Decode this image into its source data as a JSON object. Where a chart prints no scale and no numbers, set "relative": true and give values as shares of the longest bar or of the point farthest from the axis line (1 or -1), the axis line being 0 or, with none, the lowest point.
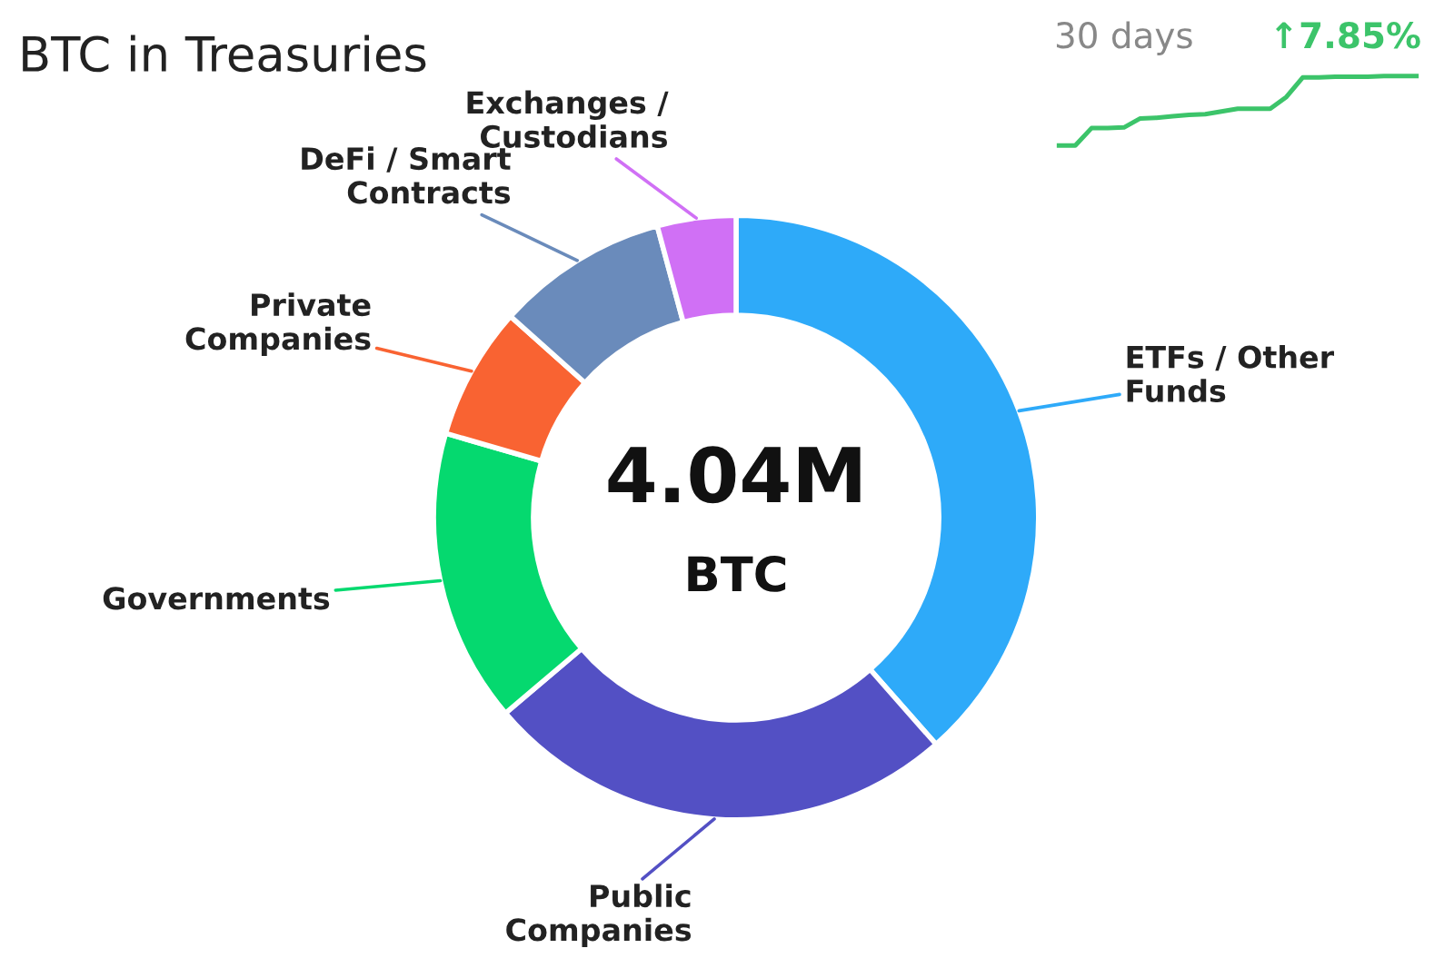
{
  "chart_data": [
    {
      "type": "donut",
      "title": "BTC in Treasuries",
      "categories": [
        "ETFs / Other\nFunds",
        "Public\nCompanies",
        "Governments",
        "Private\nCompanies",
        "DeFi / Smart\nContracts",
        "Exchanges /\nCustodians"
      ],
      "values": [
        38.5,
        25.3,
        15.7,
        7.1,
        9.2,
        4.2
      ],
      "colors": [
        "#2eaaf9",
        "#5350c4",
        "#05d96f",
        "#f96332",
        "#6a8bbb",
        "#d070f5"
      ],
      "annotations": [
        "4.04M",
        "BTC"
      ]
    },
    {
      "type": "line",
      "relative": true,
      "categories": [
        null,
        null,
        null,
        null,
        null,
        null,
        null,
        null,
        null,
        null,
        null,
        null,
        null,
        null,
        null,
        null,
        null,
        null,
        null,
        null,
        null,
        null,
        null
      ],
      "series": [
        {
          "color": "#3cc46a",
          "values": [
            0,
            0,
            0.25,
            0.25,
            0.26,
            0.39,
            0.4,
            0.42,
            0.44,
            0.45,
            0.49,
            0.53,
            0.53,
            0.53,
            0.7,
            0.98,
            0.98,
            0.99,
            0.99,
            0.99,
            1,
            1,
            1
          ]
        }
      ],
      "annotations": [
        "30 days",
        "↑7.85%"
      ]
    }
  ]
}
